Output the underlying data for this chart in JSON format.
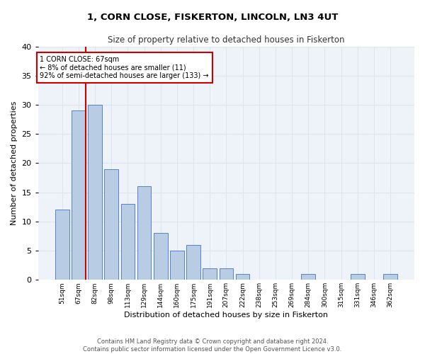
{
  "title": "1, CORN CLOSE, FISKERTON, LINCOLN, LN3 4UT",
  "subtitle": "Size of property relative to detached houses in Fiskerton",
  "xlabel": "Distribution of detached houses by size in Fiskerton",
  "ylabel": "Number of detached properties",
  "footer_line1": "Contains HM Land Registry data © Crown copyright and database right 2024.",
  "footer_line2": "Contains public sector information licensed under the Open Government Licence v3.0.",
  "bin_labels": [
    "51sqm",
    "67sqm",
    "82sqm",
    "98sqm",
    "113sqm",
    "129sqm",
    "144sqm",
    "160sqm",
    "175sqm",
    "191sqm",
    "207sqm",
    "222sqm",
    "238sqm",
    "253sqm",
    "269sqm",
    "284sqm",
    "300sqm",
    "315sqm",
    "331sqm",
    "346sqm",
    "362sqm"
  ],
  "bar_heights": [
    12,
    29,
    30,
    19,
    13,
    16,
    8,
    5,
    6,
    2,
    2,
    1,
    0,
    0,
    0,
    1,
    0,
    0,
    1,
    0,
    1
  ],
  "bar_color": "#b8cce4",
  "bar_edge_color": "#4472c4",
  "grid_color": "#dce6f0",
  "bg_color": "#eef3f9",
  "annotation_text": "1 CORN CLOSE: 67sqm\n← 8% of detached houses are smaller (11)\n92% of semi-detached houses are larger (133) →",
  "annotation_box_color": "#ffffff",
  "annotation_box_edge": "#cc0000",
  "vline_x_index": 1,
  "vline_color": "#cc0000",
  "ylim": [
    0,
    40
  ],
  "yticks": [
    0,
    5,
    10,
    15,
    20,
    25,
    30,
    35,
    40
  ]
}
